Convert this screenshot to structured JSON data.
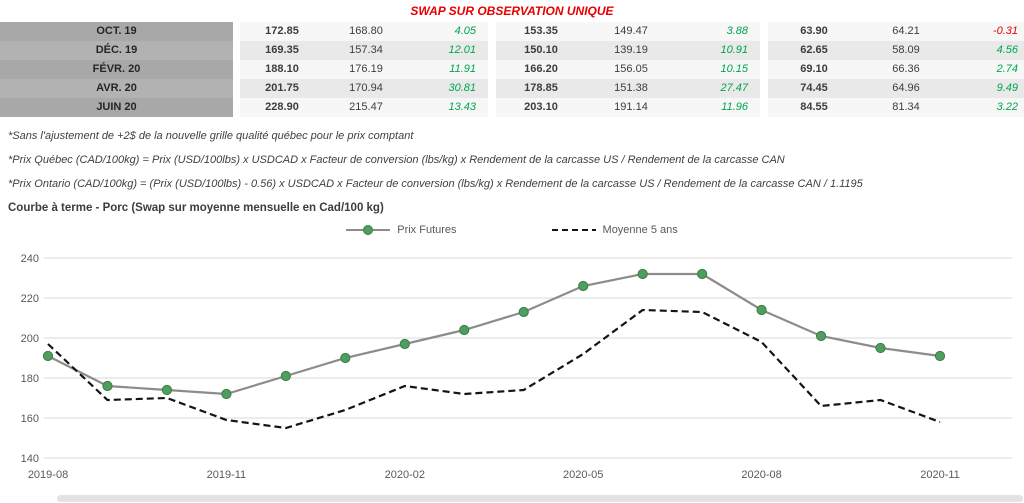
{
  "title": "SWAP SUR OBSERVATION UNIQUE",
  "colors": {
    "title-red": "#e60000",
    "positive-green": "#00a550",
    "negative-red": "#e60000",
    "label-bg": "#a8a8a8",
    "label-bg-alt": "#b2b2b2",
    "row-odd": "#f7f7f7",
    "row-even": "#e9e9e9",
    "grid": "#d9d9d9",
    "axis-text": "#595959",
    "futures-line": "#8c8c8c",
    "futures-marker": "#4e9e5f",
    "futures-marker-edge": "#3c7b49",
    "moyenne-line": "#141414"
  },
  "table": {
    "rows": [
      {
        "label": "OCT. 19",
        "values": [
          "172.85",
          "168.80",
          "4.05",
          "153.35",
          "149.47",
          "3.88",
          "63.90",
          "64.21",
          "-0.31"
        ]
      },
      {
        "label": "DÉC. 19",
        "values": [
          "169.35",
          "157.34",
          "12.01",
          "150.10",
          "139.19",
          "10.91",
          "62.65",
          "58.09",
          "4.56"
        ]
      },
      {
        "label": "FÉVR. 20",
        "values": [
          "188.10",
          "176.19",
          "11.91",
          "166.20",
          "156.05",
          "10.15",
          "69.10",
          "66.36",
          "2.74"
        ]
      },
      {
        "label": "AVR. 20",
        "values": [
          "201.75",
          "170.94",
          "30.81",
          "178.85",
          "151.38",
          "27.47",
          "74.45",
          "64.96",
          "9.49"
        ]
      },
      {
        "label": "JUIN 20",
        "values": [
          "228.90",
          "215.47",
          "13.43",
          "203.10",
          "191.14",
          "11.96",
          "84.55",
          "81.34",
          "3.22"
        ]
      }
    ]
  },
  "footnotes": [
    "*Sans l'ajustement de +2$ de la nouvelle grille qualité québec pour le prix comptant",
    "*Prix Québec (CAD/100kg) = Prix (USD/100lbs) x USDCAD x Facteur de conversion (lbs/kg) x Rendement de la carcasse US / Rendement de la carcasse CAN",
    "*Prix Ontario (CAD/100kg) = (Prix (USD/100lbs) - 0.56) x USDCAD x Facteur de conversion (lbs/kg) x Rendement de la carcasse US / Rendement de la carcasse CAN / 1.1195"
  ],
  "chart_data": {
    "type": "line",
    "title": "Courbe à terme - Porc (Swap sur moyenne mensuelle en Cad/100 kg)",
    "x": [
      "2019-08",
      "2019-09",
      "2019-10",
      "2019-11",
      "2019-12",
      "2020-01",
      "2020-02",
      "2020-03",
      "2020-04",
      "2020-05",
      "2020-06",
      "2020-07",
      "2020-08",
      "2020-09",
      "2020-10",
      "2020-11"
    ],
    "x_tick_indices": [
      0,
      3,
      6,
      9,
      12,
      15
    ],
    "x_tick_labels": [
      "2019-08",
      "2019-11",
      "2020-02",
      "2020-05",
      "2020-08",
      "2020-11"
    ],
    "ylim": [
      140,
      240
    ],
    "yticks": [
      140,
      160,
      180,
      200,
      220,
      240
    ],
    "grid": "horizontal",
    "legend_position": "top-center",
    "series": [
      {
        "name": "Prix Futures",
        "style": "solid-markers",
        "values": [
          191,
          176,
          174,
          172,
          181,
          190,
          197,
          204,
          213,
          226,
          232,
          232,
          214,
          201,
          195,
          191
        ]
      },
      {
        "name": "Moyenne 5 ans",
        "style": "dashed",
        "values": [
          197,
          169,
          170,
          159,
          155,
          164,
          176,
          172,
          174,
          192,
          214,
          213,
          198,
          166,
          169,
          158
        ]
      }
    ]
  }
}
